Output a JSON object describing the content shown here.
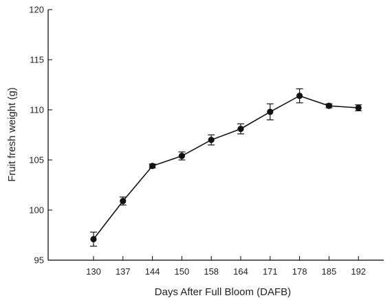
{
  "chart_data": {
    "type": "line",
    "title": "",
    "xlabel": "Days After Full Bloom (DAFB)",
    "ylabel": "Fruit fresh weight (g)",
    "categories": [
      "130",
      "137",
      "144",
      "150",
      "158",
      "164",
      "171",
      "178",
      "185",
      "192"
    ],
    "series": [
      {
        "values": [
          97.1,
          100.9,
          104.4,
          105.4,
          107.0,
          108.1,
          109.8,
          111.4,
          110.4,
          110.2
        ],
        "error": [
          0.7,
          0.4,
          0.2,
          0.4,
          0.5,
          0.5,
          0.8,
          0.7,
          0.2,
          0.3
        ]
      }
    ],
    "yticks": [
      "95",
      "100",
      "105",
      "110",
      "115",
      "120"
    ],
    "ylim": [
      95,
      120
    ],
    "grid": false,
    "legend": "none",
    "colors": {
      "line": "#111111",
      "marker": "#111111",
      "axis": "#000000"
    }
  }
}
